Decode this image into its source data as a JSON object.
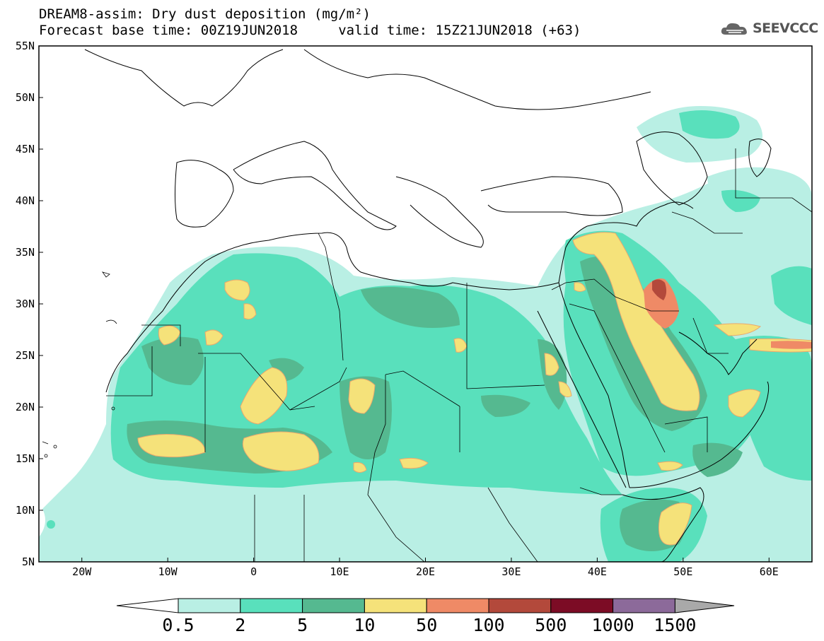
{
  "header": {
    "line1": "DREAM8-assim: Dry dust deposition (mg/m²)",
    "line2": "Forecast base time: 00Z19JUN2018     valid time: 15Z21JUN2018 (+63)",
    "logo_text": "SEEVCCC"
  },
  "map": {
    "lon_ticks": [
      "20W",
      "10W",
      "0",
      "10E",
      "20E",
      "30E",
      "40E",
      "50E",
      "60E"
    ],
    "lat_ticks": [
      "55N",
      "50N",
      "45N",
      "40N",
      "35N",
      "30N",
      "25N",
      "20N",
      "15N",
      "10N",
      "5N"
    ]
  },
  "colorbar": {
    "labels": [
      "0.5",
      "2",
      "5",
      "10",
      "50",
      "100",
      "500",
      "1000",
      "1500"
    ],
    "colors": [
      "#b9efe4",
      "#59e0bc",
      "#55b990",
      "#f5e27a",
      "#ef8a66",
      "#b3493b",
      "#7c0c25",
      "#8c6a9a"
    ],
    "under_color": "#ffffff",
    "over_color": "#a9a9a9"
  }
}
